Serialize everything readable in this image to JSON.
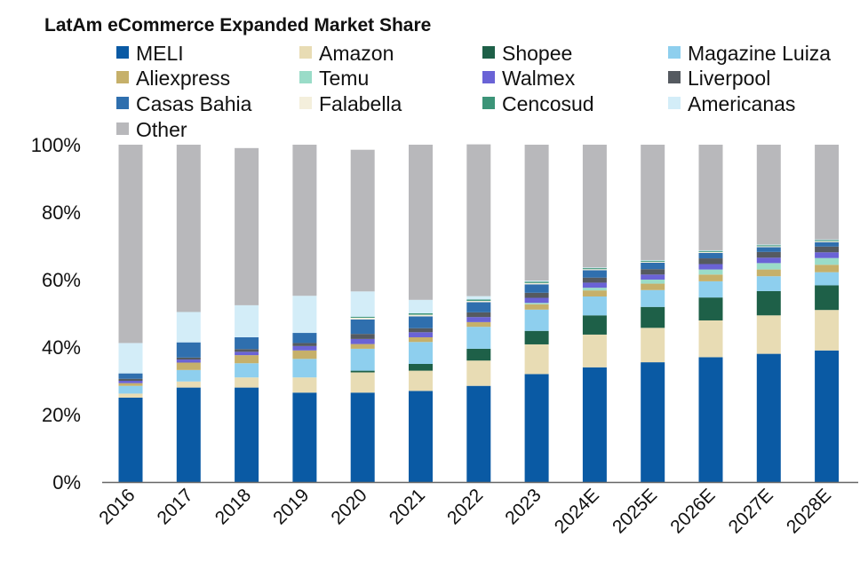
{
  "chart_data": {
    "type": "bar",
    "stacked": true,
    "title": "LatAm eCommerce Expanded Market Share",
    "xlabel": "",
    "ylabel": "",
    "ylim": [
      0,
      100
    ],
    "yticks": [
      "0%",
      "20%",
      "40%",
      "60%",
      "80%",
      "100%"
    ],
    "categories": [
      "2016",
      "2017",
      "2018",
      "2019",
      "2020",
      "2021",
      "2022",
      "2023",
      "2024E",
      "2025E",
      "2026E",
      "2027E",
      "2028E"
    ],
    "legend_position": "top",
    "series": [
      {
        "name": "MELI",
        "color": "#0a5aa4",
        "values": [
          25,
          28,
          28,
          26.5,
          26.5,
          27,
          28.5,
          32,
          34,
          35.5,
          37,
          38,
          39
        ]
      },
      {
        "name": "Amazon",
        "color": "#e8dcb4",
        "values": [
          1.2,
          1.8,
          3,
          4.5,
          6,
          6,
          7.5,
          8.8,
          9.7,
          10.2,
          10.9,
          11.4,
          12
        ]
      },
      {
        "name": "Shopee",
        "color": "#1e6048",
        "values": [
          0,
          0,
          0,
          0,
          0.5,
          2,
          3.5,
          4,
          5.7,
          6.2,
          6.8,
          7.2,
          7.3
        ]
      },
      {
        "name": "Magazine Luiza",
        "color": "#8ecfee",
        "values": [
          2.3,
          3.4,
          4.2,
          5.5,
          6.5,
          6.5,
          6.5,
          6.3,
          5.6,
          5,
          4.8,
          4.4,
          3.9
        ]
      },
      {
        "name": "Aliexpress",
        "color": "#c6b06a",
        "values": [
          0.8,
          2.2,
          2.4,
          2.5,
          1.4,
          1.4,
          1.4,
          1.6,
          1.8,
          1.9,
          2,
          2,
          2.2
        ]
      },
      {
        "name": "Temu",
        "color": "#9adcc8",
        "values": [
          0,
          0,
          0,
          0,
          0,
          0,
          0,
          0.4,
          0.8,
          1.2,
          1.5,
          1.9,
          2
        ]
      },
      {
        "name": "Walmex",
        "color": "#6a63d6",
        "values": [
          0.7,
          0.9,
          1,
          1.3,
          1.5,
          1.5,
          1.5,
          1.5,
          1.5,
          1.5,
          1.6,
          1.6,
          1.7
        ]
      },
      {
        "name": "Liverpool",
        "color": "#555a60",
        "values": [
          0.6,
          0.6,
          0.8,
          0.9,
          1.5,
          1.2,
          1.4,
          1.5,
          1.5,
          1.6,
          1.7,
          1.7,
          1.7
        ]
      },
      {
        "name": "Casas Bahia",
        "color": "#2f6fae",
        "values": [
          1.6,
          4.5,
          3.5,
          3,
          4.3,
          3.5,
          3,
          2.5,
          2.2,
          1.9,
          1.6,
          1.4,
          1.3
        ]
      },
      {
        "name": "Falabella",
        "color": "#f4efdc",
        "values": [
          0,
          0,
          0,
          0,
          0.5,
          0.5,
          0.4,
          0.4,
          0.3,
          0.3,
          0.3,
          0.3,
          0.3
        ]
      },
      {
        "name": "Cencosud",
        "color": "#3c9478",
        "values": [
          0,
          0,
          0,
          0,
          0.3,
          0.4,
          0.4,
          0.4,
          0.3,
          0.3,
          0.3,
          0.3,
          0.3
        ]
      },
      {
        "name": "Americanas",
        "color": "#d3edf8",
        "values": [
          9,
          9,
          9.5,
          11,
          7.5,
          4,
          1,
          0.3,
          0.2,
          0.2,
          0.2,
          0.2,
          0.2
        ]
      },
      {
        "name": "Other",
        "color": "#b8b8bb",
        "values": [
          58.8,
          49.6,
          46.6,
          44.8,
          42,
          46,
          45,
          40.3,
          36.4,
          34.2,
          31.3,
          29.6,
          28.1
        ]
      }
    ]
  }
}
